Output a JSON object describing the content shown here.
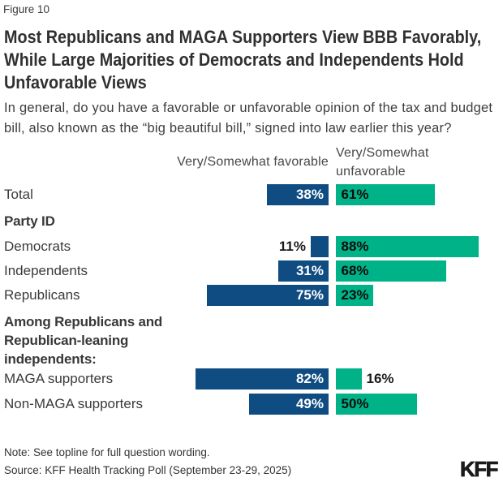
{
  "header": {
    "figure_label": "Figure 10"
  },
  "chart_data": {
    "type": "bar",
    "orientation": "horizontal-diverging",
    "title_lines": [
      "Most Republicans and MAGA Supporters View BBB Favorably,",
      "While Large Majorities of Democrats and Independents Hold",
      "Unfavorable Views"
    ],
    "subtitle_lines": [
      "In general, do you have a favorable or unfavorable opinion of the tax and budget",
      "bill, also known as the “big beautiful bill,” signed into law earlier this year?"
    ],
    "series_names": [
      "Very/Somewhat favorable",
      "Very/Somewhat unfavorable"
    ],
    "colors": {
      "favorable": "#0F4C81",
      "unfavorable": "#00B287"
    },
    "unit": "percent",
    "xlim": [
      0,
      100
    ],
    "rows": [
      {
        "type": "bar",
        "label": "Total",
        "favorable": 38,
        "unfavorable": 61
      },
      {
        "type": "section",
        "lines": [
          "Party ID"
        ]
      },
      {
        "type": "bar",
        "label": "Democrats",
        "favorable": 11,
        "unfavorable": 88
      },
      {
        "type": "bar",
        "label": "Independents",
        "favorable": 31,
        "unfavorable": 68
      },
      {
        "type": "bar",
        "label": "Republicans",
        "favorable": 75,
        "unfavorable": 23
      },
      {
        "type": "section",
        "lines": [
          "Among Republicans and",
          "Republican-leaning",
          "independents:"
        ]
      },
      {
        "type": "bar",
        "label": "MAGA supporters",
        "favorable": 82,
        "unfavorable": 16
      },
      {
        "type": "bar",
        "label": "Non-MAGA supporters",
        "favorable": 49,
        "unfavorable": 50
      }
    ]
  },
  "footer": {
    "note": "Note: See topline for full question wording.",
    "source": "Source: KFF Health Tracking Poll (September 23-29, 2025)",
    "logo": "KFF"
  }
}
